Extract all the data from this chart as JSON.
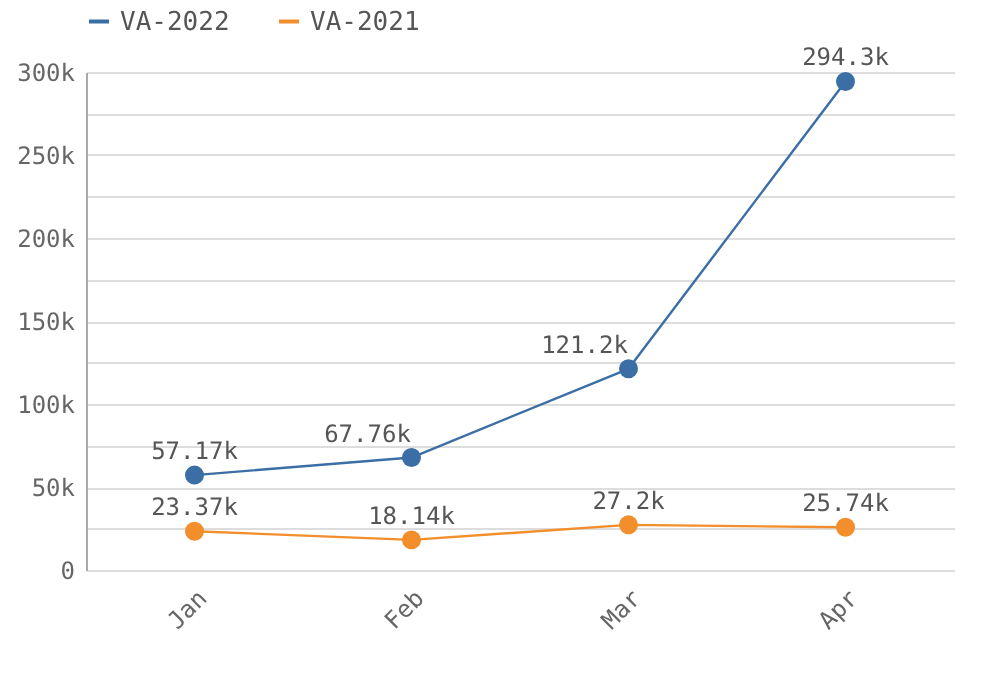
{
  "chart_data": {
    "type": "line",
    "categories": [
      "Jan",
      "Feb",
      "Mar",
      "Apr"
    ],
    "series": [
      {
        "name": "VA-2022",
        "color": "#3a6ea5",
        "values": [
          57170,
          67760,
          121200,
          294300
        ],
        "value_labels": [
          "57.17k",
          "67.76k",
          "121.2k",
          "294.3k"
        ]
      },
      {
        "name": "VA-2021",
        "color": "#f28e2b",
        "values": [
          23370,
          18140,
          27200,
          25740
        ],
        "value_labels": [
          "23.37k",
          "18.14k",
          "27.2k",
          "25.74k"
        ]
      }
    ],
    "ylim": [
      0,
      300000
    ],
    "yticks": [
      {
        "value": 0,
        "label": "0"
      },
      {
        "value": 25000,
        "label": null
      },
      {
        "value": 50000,
        "label": "50k"
      },
      {
        "value": 75000,
        "label": null
      },
      {
        "value": 100000,
        "label": "100k"
      },
      {
        "value": 125000,
        "label": null
      },
      {
        "value": 150000,
        "label": "150k"
      },
      {
        "value": 175000,
        "label": null
      },
      {
        "value": 200000,
        "label": "200k"
      },
      {
        "value": 225000,
        "label": null
      },
      {
        "value": 250000,
        "label": "250k"
      },
      {
        "value": 275000,
        "label": null
      },
      {
        "value": 300000,
        "label": "300k"
      }
    ],
    "grid": "y",
    "legend": "top left",
    "marker": "circle",
    "line_style": "solid"
  }
}
